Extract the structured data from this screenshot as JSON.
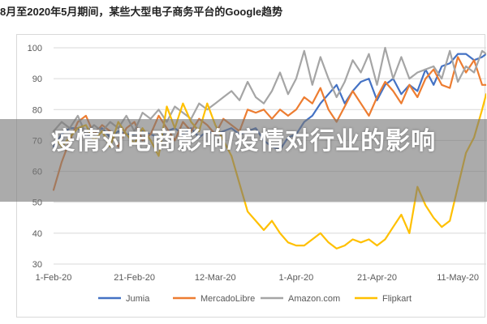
{
  "header": {
    "title": "8月至2020年5月期间，某些大型电子商务平台的Google趋势"
  },
  "overlay": {
    "text": "疫情对电商影响/疫情对行业的影响"
  },
  "colors": {
    "Jumia": "#4472c4",
    "MercadoLibre": "#ed7d31",
    "Amazon.com": "#a5a5a5",
    "Flipkart": "#ffc000",
    "grid": "#d9d9d9"
  },
  "chart_data": {
    "type": "line",
    "title": "",
    "xlabel": "",
    "ylabel": "",
    "ylim": [
      30,
      100
    ],
    "yticks": [
      30,
      40,
      50,
      60,
      70,
      80,
      90,
      100
    ],
    "xlim": [
      0,
      107
    ],
    "xticks": [
      {
        "x": 0,
        "label": "1-Feb-20"
      },
      {
        "x": 20,
        "label": "21-Feb-20"
      },
      {
        "x": 40,
        "label": "12-Mar-20"
      },
      {
        "x": 60,
        "label": "1-Apr-20"
      },
      {
        "x": 80,
        "label": "21-Apr-20"
      },
      {
        "x": 100,
        "label": "11-May-20"
      }
    ],
    "grid": "horizontal",
    "legend_position": "bottom",
    "series": [
      {
        "name": "Jumia",
        "x": [
          0,
          2,
          4,
          6,
          8,
          10,
          12,
          14,
          16,
          18,
          20,
          22,
          24,
          26,
          28,
          30,
          32,
          34,
          36,
          38,
          40,
          42,
          44,
          46,
          48,
          50,
          52,
          54,
          56,
          58,
          60,
          62,
          64,
          66,
          68,
          70,
          72,
          74,
          76,
          78,
          80,
          82,
          84,
          86,
          88,
          90,
          92,
          94,
          96,
          98,
          100,
          102,
          104,
          106,
          107
        ],
        "y": [
          68,
          72,
          74,
          74,
          71,
          73,
          74,
          71,
          73,
          72,
          72,
          73,
          72,
          71,
          73,
          74,
          72,
          74,
          71,
          73,
          72,
          73,
          74,
          72,
          73,
          74,
          70,
          68,
          67,
          71,
          72,
          76,
          78,
          82,
          85,
          88,
          82,
          86,
          89,
          90,
          83,
          88,
          90,
          85,
          88,
          86,
          93,
          88,
          94,
          95,
          98,
          98,
          96,
          97,
          98
        ]
      },
      {
        "name": "MercadoLibre",
        "x": [
          0,
          2,
          4,
          6,
          8,
          10,
          12,
          14,
          16,
          18,
          20,
          22,
          24,
          26,
          28,
          30,
          32,
          34,
          36,
          38,
          40,
          42,
          44,
          46,
          48,
          50,
          52,
          54,
          56,
          58,
          60,
          62,
          64,
          66,
          68,
          70,
          72,
          74,
          76,
          78,
          80,
          82,
          84,
          86,
          88,
          90,
          92,
          94,
          96,
          98,
          100,
          102,
          104,
          106,
          107
        ],
        "y": [
          54,
          63,
          70,
          76,
          78,
          72,
          75,
          73,
          68,
          74,
          76,
          70,
          72,
          78,
          74,
          70,
          76,
          73,
          77,
          75,
          72,
          77,
          75,
          73,
          80,
          79,
          80,
          77,
          80,
          78,
          80,
          84,
          82,
          87,
          80,
          76,
          81,
          86,
          82,
          78,
          84,
          89,
          86,
          82,
          88,
          84,
          90,
          93,
          88,
          87,
          97,
          92,
          96,
          88,
          88
        ]
      },
      {
        "name": "Amazon.com",
        "x": [
          0,
          2,
          4,
          6,
          8,
          10,
          12,
          14,
          16,
          18,
          20,
          22,
          24,
          26,
          28,
          30,
          32,
          34,
          36,
          38,
          40,
          42,
          44,
          46,
          48,
          50,
          52,
          54,
          56,
          58,
          60,
          62,
          64,
          66,
          68,
          70,
          72,
          74,
          76,
          78,
          80,
          82,
          84,
          86,
          88,
          90,
          92,
          94,
          96,
          98,
          100,
          102,
          104,
          106,
          107
        ],
        "y": [
          73,
          76,
          74,
          78,
          72,
          75,
          73,
          76,
          74,
          78,
          73,
          79,
          77,
          80,
          76,
          81,
          79,
          77,
          82,
          80,
          82,
          84,
          86,
          83,
          89,
          84,
          82,
          86,
          92,
          85,
          90,
          99,
          88,
          97,
          90,
          84,
          89,
          96,
          92,
          98,
          88,
          100,
          90,
          97,
          90,
          92,
          93,
          94,
          90,
          99,
          89,
          94,
          92,
          99,
          98
        ]
      },
      {
        "name": "Flipkart",
        "x": [
          0,
          2,
          4,
          6,
          8,
          10,
          12,
          14,
          16,
          18,
          20,
          22,
          24,
          26,
          28,
          30,
          32,
          34,
          36,
          38,
          40,
          42,
          44,
          46,
          48,
          50,
          52,
          54,
          56,
          58,
          60,
          62,
          64,
          66,
          68,
          70,
          72,
          74,
          76,
          78,
          80,
          82,
          84,
          86,
          88,
          90,
          92,
          94,
          96,
          98,
          100,
          102,
          104,
          106,
          107
        ],
        "y": [
          72,
          68,
          71,
          74,
          75,
          70,
          73,
          68,
          76,
          72,
          69,
          74,
          70,
          65,
          81,
          74,
          82,
          76,
          73,
          82,
          75,
          70,
          65,
          56,
          47,
          44,
          41,
          44,
          40,
          37,
          36,
          36,
          38,
          40,
          37,
          35,
          36,
          38,
          37,
          38,
          36,
          38,
          42,
          46,
          40,
          55,
          49,
          45,
          42,
          44,
          55,
          66,
          71,
          80,
          85
        ]
      }
    ]
  }
}
